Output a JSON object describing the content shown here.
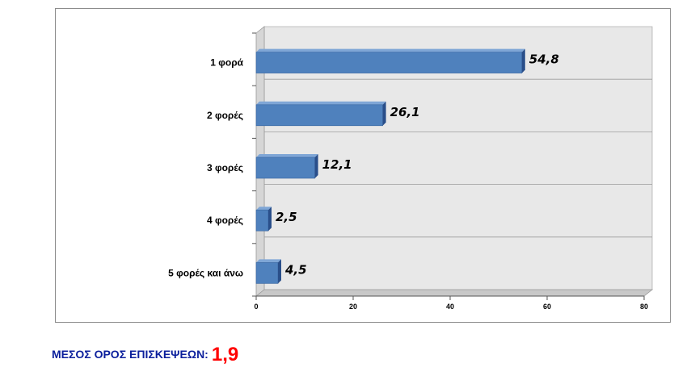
{
  "top_fragment": "",
  "chart_data": {
    "type": "bar",
    "orientation": "horizontal",
    "categories": [
      "1 φορά",
      "2 φορές",
      "3 φορές",
      "4 φορές",
      "5 φορές και άνω"
    ],
    "values": [
      54.8,
      26.1,
      12.1,
      2.5,
      4.5
    ],
    "value_labels": [
      "54,8",
      "26,1",
      "12,1",
      "2,5",
      "4,5"
    ],
    "xlim": [
      0,
      80
    ],
    "xticks": [
      "0",
      "20",
      "40",
      "60",
      "80"
    ],
    "grid": true,
    "legend": "none",
    "colors": {
      "bar": "#4f81bd",
      "bar_side": "#2a4f8a",
      "bar_top": "#7fa6d6",
      "wall": "#e8e8e8",
      "floor": "#c8c8c8"
    }
  },
  "footer": {
    "label": "ΜΕΣΟΣ ΟΡΟΣ ΕΠΙΣΚΕΨΕΩΝ:",
    "value": "1,9"
  }
}
